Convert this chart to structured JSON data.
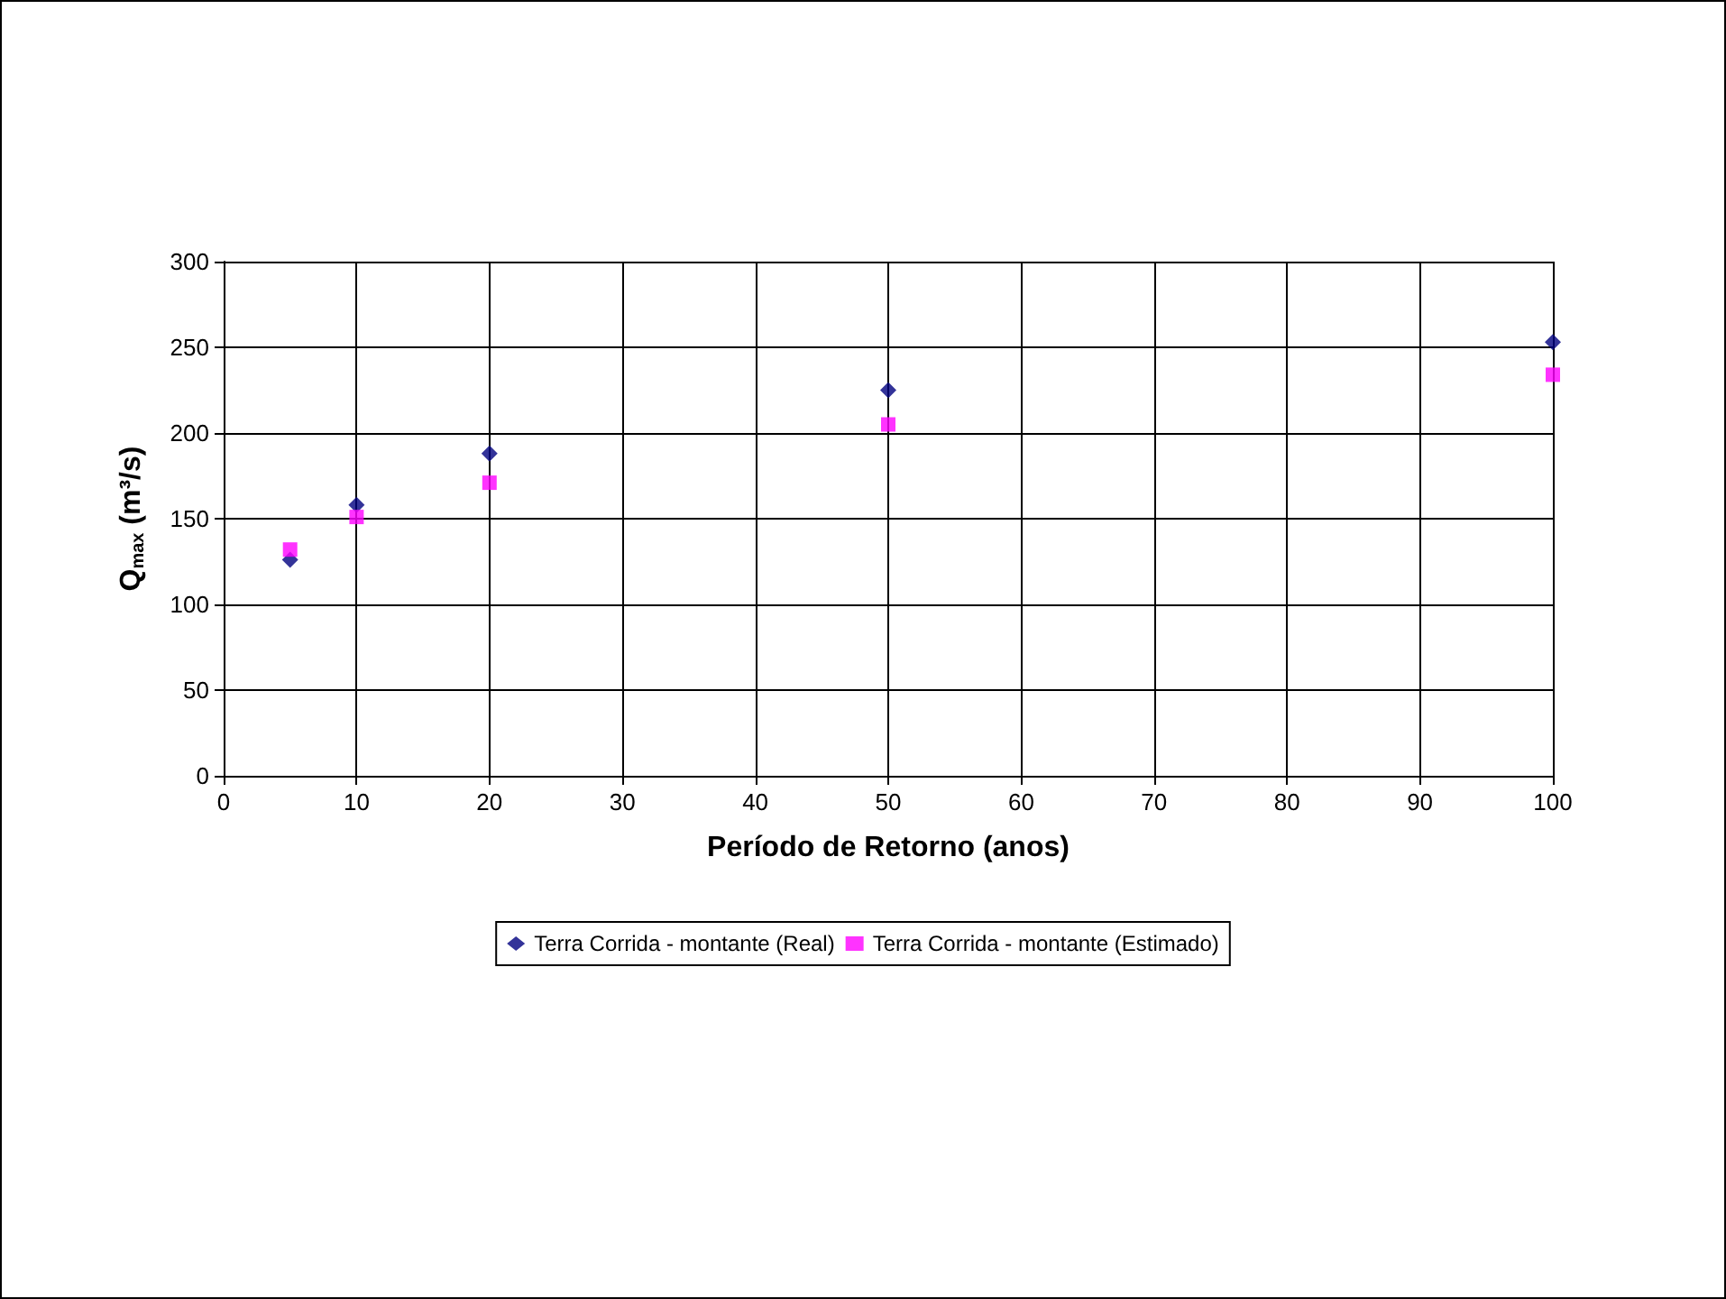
{
  "chart_data": {
    "type": "scatter",
    "xlabel": "Período de Retorno (anos)",
    "ylabel": "Q$_{max}$ (m³/s)",
    "xlim": [
      0,
      100
    ],
    "xticks": [
      0,
      10,
      20,
      30,
      40,
      50,
      60,
      70,
      80,
      90,
      100
    ],
    "ylim": [
      0,
      300
    ],
    "yticks": [
      0,
      50,
      100,
      150,
      200,
      250,
      300
    ],
    "grid": true,
    "legend": "bottom",
    "series": [
      {
        "name": "Terra Corrida - montante (Real)",
        "color": "#000080",
        "marker": "diamond",
        "x": [
          5,
          10,
          20,
          50,
          100
        ],
        "values": [
          126,
          158,
          188,
          225,
          253
        ]
      },
      {
        "name": "Terra Corrida - montante (Estimado)",
        "color": "#ff00ff",
        "marker": "square",
        "x": [
          5,
          10,
          20,
          50,
          100
        ],
        "values": [
          132,
          151,
          171,
          205,
          234
        ]
      }
    ]
  }
}
